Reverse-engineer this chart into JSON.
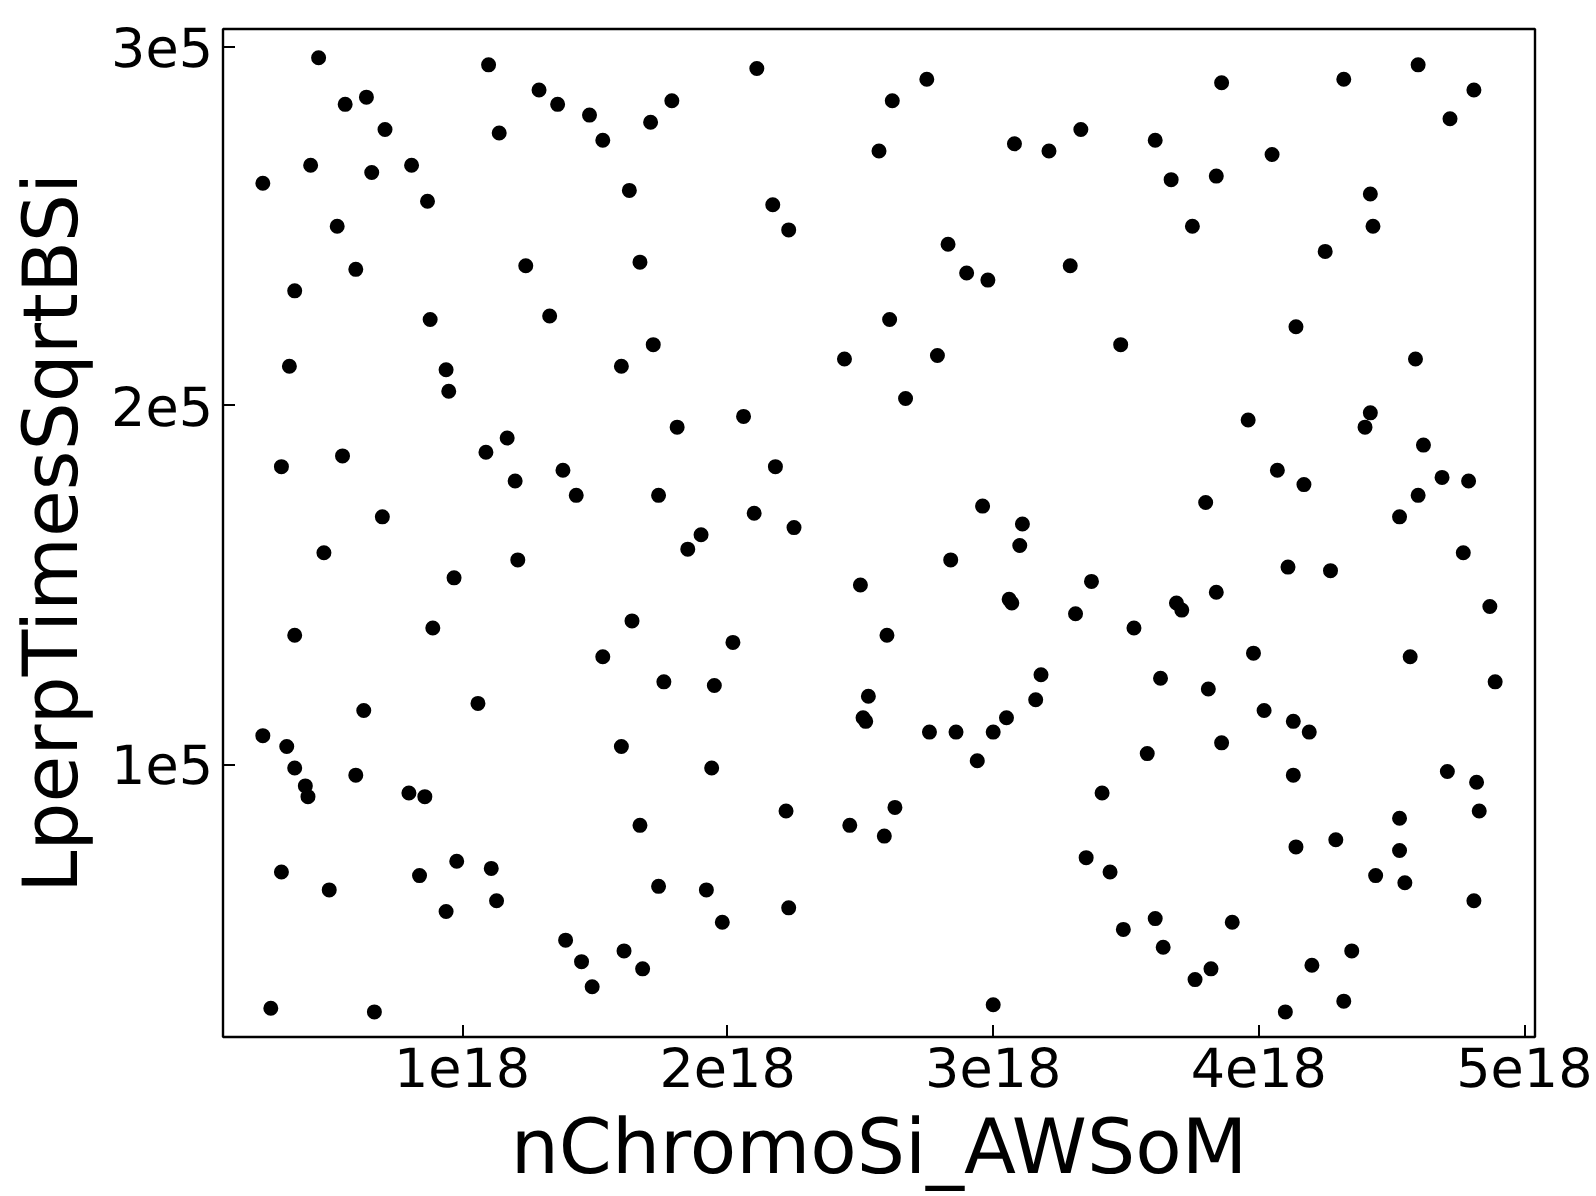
{
  "chart_data": {
    "type": "scatter",
    "xlabel": "nChromoSi_AWSoM",
    "ylabel": "LperpTimesSqrtBSi",
    "color": "#000000",
    "marker": "circle",
    "grid": false,
    "xlim": [
      1e+17,
      5.04e+18
    ],
    "ylim": [
      24000.0,
      305000.0
    ],
    "xticks": [
      {
        "value": 1e+18,
        "label": "1e18"
      },
      {
        "value": 2e+18,
        "label": "2e18"
      },
      {
        "value": 3e+18,
        "label": "3e18"
      },
      {
        "value": 4e+18,
        "label": "4e18"
      },
      {
        "value": 5e+18,
        "label": "5e18"
      }
    ],
    "yticks": [
      {
        "value": 100000.0,
        "label": "1e5"
      },
      {
        "value": 200000.0,
        "label": "2e5"
      },
      {
        "value": 300000.0,
        "label": "3e5"
      }
    ],
    "x": [
      2.5e+17,
      2.5e+17,
      2.8e+17,
      3.2e+17,
      3.2e+17,
      3.4e+17,
      3.5e+17,
      3.7e+17,
      3.7e+17,
      3.7e+17,
      4.1e+17,
      4.2e+17,
      4.3e+17,
      4.6e+17,
      4.8e+17,
      5e+17,
      5.3e+17,
      5.5e+17,
      5.6e+17,
      6e+17,
      6e+17,
      6.3e+17,
      6.4e+17,
      6.6e+17,
      6.7e+17,
      7e+17,
      7.1e+17,
      8e+17,
      8.1e+17,
      8.4e+17,
      8.6e+17,
      8.7e+17,
      8.8e+17,
      8.9e+17,
      9.4e+17,
      9.4e+17,
      9.5e+17,
      9.7e+17,
      9.8e+17,
      1.06e+18,
      1.09e+18,
      1.1e+18,
      1.11e+18,
      1.13e+18,
      1.14e+18,
      1.17e+18,
      1.2e+18,
      1.21e+18,
      1.24e+18,
      1.29e+18,
      1.33e+18,
      1.36e+18,
      1.38e+18,
      1.39e+18,
      1.43e+18,
      1.45e+18,
      1.48e+18,
      1.49e+18,
      1.53e+18,
      1.53e+18,
      1.6e+18,
      1.6e+18,
      1.61e+18,
      1.63e+18,
      1.64e+18,
      1.67e+18,
      1.67e+18,
      1.68e+18,
      1.71e+18,
      1.72e+18,
      1.74e+18,
      1.74e+18,
      1.76e+18,
      1.79e+18,
      1.81e+18,
      1.85e+18,
      1.9e+18,
      1.92e+18,
      1.94e+18,
      1.95e+18,
      1.98e+18,
      2.02e+18,
      2.06e+18,
      2.1e+18,
      2.11e+18,
      2.17e+18,
      2.18e+18,
      2.23e+18,
      2.22e+18,
      2.23e+18,
      2.25e+18,
      2.44e+18,
      2.46e+18,
      2.5e+18,
      2.51e+18,
      2.52e+18,
      2.53e+18,
      2.57e+18,
      2.59e+18,
      2.6e+18,
      2.61e+18,
      2.62e+18,
      2.63e+18,
      2.67e+18,
      2.75e+18,
      2.76e+18,
      2.79e+18,
      2.83e+18,
      2.84e+18,
      2.86e+18,
      2.9e+18,
      2.94e+18,
      2.96e+18,
      2.98e+18,
      3e+18,
      3e+18,
      3.05e+18,
      3.06e+18,
      3.07e+18,
      3.08e+18,
      3.1e+18,
      3.11e+18,
      3.16e+18,
      3.18e+18,
      3.21e+18,
      3.29e+18,
      3.31e+18,
      3.33e+18,
      3.35e+18,
      3.37e+18,
      3.41e+18,
      3.44e+18,
      3.48e+18,
      3.49e+18,
      3.53e+18,
      3.58e+18,
      3.61e+18,
      3.61e+18,
      3.63e+18,
      3.64e+18,
      3.67e+18,
      3.69e+18,
      3.71e+18,
      3.75e+18,
      3.76e+18,
      3.81e+18,
      3.82e+18,
      3.8e+18,
      3.84e+18,
      3.84e+18,
      3.86e+18,
      3.86e+18,
      3.9e+18,
      3.96e+18,
      3.98e+18,
      4.02e+18,
      4.05e+18,
      4.07e+18,
      4.1e+18,
      4.11e+18,
      4.13e+18,
      4.13e+18,
      4.14e+18,
      4.14e+18,
      4.17e+18,
      4.19e+18,
      4.2e+18,
      4.25e+18,
      4.27e+18,
      4.29e+18,
      4.32e+18,
      4.32e+18,
      4.35e+18,
      4.4e+18,
      4.42e+18,
      4.42e+18,
      4.43e+18,
      4.44e+18,
      4.53e+18,
      4.53e+18,
      4.53e+18,
      4.55e+18,
      4.57e+18,
      4.59e+18,
      4.6e+18,
      4.6e+18,
      4.62e+18,
      4.69e+18,
      4.71e+18,
      4.72e+18,
      4.77e+18,
      4.79e+18,
      4.81e+18,
      4.81e+18,
      4.82e+18,
      4.83e+18,
      4.87e+18,
      4.89e+18
    ],
    "values": [
      262000.0,
      108000.0,
      32000.0,
      183000.0,
      70000.0,
      105000.0,
      211000.0,
      99000.0,
      232000.0,
      136000.0,
      94000.0,
      91000.0,
      267000.0,
      297000.0,
      159000.0,
      65000.0,
      250000.0,
      186000.0,
      284000.0,
      238000.0,
      97000.0,
      115000.0,
      286000.0,
      265000.0,
      31000.0,
      169000.0,
      277000.0,
      92000.0,
      267000.0,
      69000.0,
      91000.0,
      257000.0,
      224000.0,
      138000.0,
      59000.0,
      210000.0,
      204000.0,
      152000.0,
      73000.0,
      117000.0,
      187000.0,
      295000.0,
      71000.0,
      62000.0,
      276000.0,
      191000.0,
      179000.0,
      157000.0,
      239000.0,
      288000.0,
      225000.0,
      284000.0,
      182000.0,
      51000.0,
      175000.0,
      45000.0,
      281000.0,
      38000.0,
      274000.0,
      130000.0,
      211000.0,
      105000.0,
      48000.0,
      260000.0,
      140000.0,
      240000.0,
      83000.0,
      43000.0,
      279000.0,
      217000.0,
      175000.0,
      66000.0,
      123000.0,
      285000.0,
      194000.0,
      160000.0,
      164000.0,
      65000.0,
      99000.0,
      122000.0,
      56000.0,
      134000.0,
      197000.0,
      170000.0,
      294000.0,
      256000.0,
      183000.0,
      249000.0,
      87000.0,
      60000.0,
      166000.0,
      213000.0,
      83000.0,
      150000.0,
      113000.0,
      112000.0,
      119000.0,
      271000.0,
      80000.0,
      136000.0,
      224000.0,
      285000.0,
      88000.0,
      202000.0,
      291000.0,
      109000.0,
      214000.0,
      245000.0,
      157000.0,
      109000.0,
      237000.0,
      101000.0,
      172000.0,
      235000.0,
      109000.0,
      33000.0,
      113000.0,
      146000.0,
      145000.0,
      273000.0,
      161000.0,
      167000.0,
      118000.0,
      125000.0,
      271000.0,
      239000.0,
      142000.0,
      277000.0,
      74000.0,
      151000.0,
      92000.0,
      70000.0,
      217000.0,
      54000.0,
      138000.0,
      103000.0,
      57000.0,
      274000.0,
      124000.0,
      49000.0,
      263000.0,
      145000.0,
      143000.0,
      250000.0,
      40000.0,
      121000.0,
      43000.0,
      173000.0,
      264000.0,
      148000.0,
      290000.0,
      106000.0,
      56000.0,
      196000.0,
      131000.0,
      115000.0,
      270000.0,
      182000.0,
      31000.0,
      155000.0,
      112000.0,
      97000.0,
      222000.0,
      77000.0,
      178000.0,
      109000.0,
      44000.0,
      243000.0,
      154000.0,
      79000.0,
      291000.0,
      34000.0,
      48000.0,
      194000.0,
      259000.0,
      198000.0,
      250000.0,
      69000.0,
      169000.0,
      85000.0,
      76000.0,
      67000.0,
      130000.0,
      213000.0,
      295000.0,
      175000.0,
      189000.0,
      180000.0,
      98000.0,
      280000.0,
      159000.0,
      179000.0,
      288000.0,
      62000.0,
      95000.0,
      87000.0,
      144000.0,
      123000.0
    ]
  }
}
